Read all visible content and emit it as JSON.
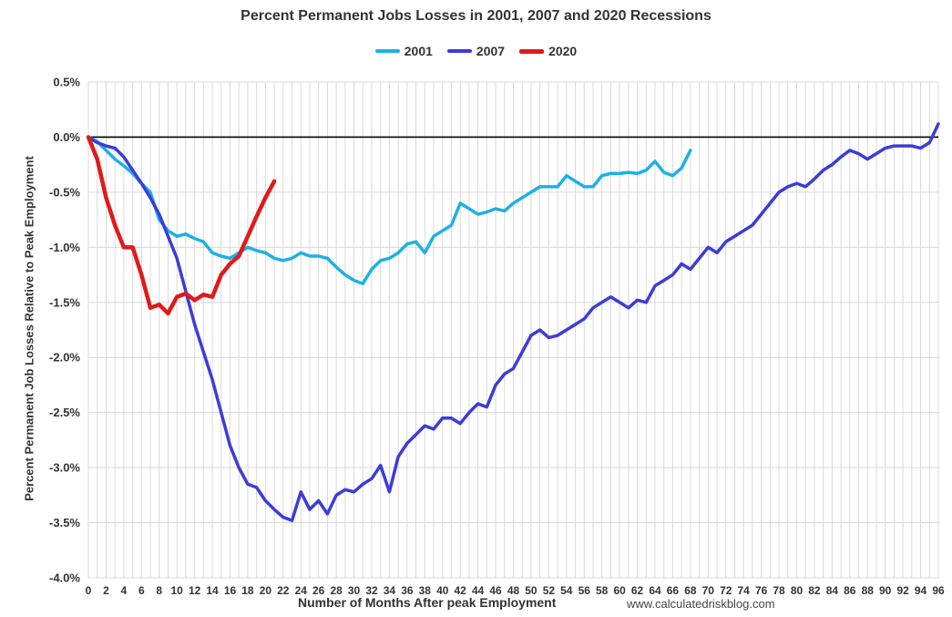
{
  "watermark": "www.calculatedriskblog.com",
  "chart_data": {
    "type": "line",
    "title": "Percent Permanent Jobs Losses in 2001, 2007 and 2020 Recessions",
    "xlabel": "Number of Months After peak Employment",
    "ylabel": "Percent Permanent Job Losses Relative to Peak Employment",
    "xlim": [
      0,
      96
    ],
    "ylim": [
      -4.0,
      0.5
    ],
    "x_tick_step": 2,
    "y_ticks": [
      0.5,
      0.0,
      -0.5,
      -1.0,
      -1.5,
      -2.0,
      -2.5,
      -3.0,
      -3.5,
      -4.0
    ],
    "grid": true,
    "legend_position": "top",
    "zero_line_color": "#000000",
    "grid_color": "#d9d9d9",
    "series": [
      {
        "name": "2001",
        "color": "#1EB0E6",
        "line_width": 3.5,
        "start_month": 0,
        "values": [
          0.0,
          -0.04,
          -0.12,
          -0.2,
          -0.26,
          -0.33,
          -0.42,
          -0.5,
          -0.75,
          -0.85,
          -0.9,
          -0.88,
          -0.92,
          -0.95,
          -1.05,
          -1.08,
          -1.1,
          -1.05,
          -1.0,
          -1.03,
          -1.05,
          -1.1,
          -1.12,
          -1.1,
          -1.05,
          -1.08,
          -1.08,
          -1.1,
          -1.18,
          -1.25,
          -1.3,
          -1.33,
          -1.2,
          -1.12,
          -1.1,
          -1.05,
          -0.97,
          -0.95,
          -1.05,
          -0.9,
          -0.85,
          -0.8,
          -0.6,
          -0.65,
          -0.7,
          -0.68,
          -0.65,
          -0.67,
          -0.6,
          -0.55,
          -0.5,
          -0.45,
          -0.45,
          -0.45,
          -0.35,
          -0.4,
          -0.45,
          -0.45,
          -0.35,
          -0.33,
          -0.33,
          -0.32,
          -0.33,
          -0.3,
          -0.22,
          -0.32,
          -0.35,
          -0.28,
          -0.12
        ]
      },
      {
        "name": "2007",
        "color": "#3C3CD9",
        "line_width": 3.5,
        "start_month": 0,
        "values": [
          0.0,
          -0.05,
          -0.08,
          -0.1,
          -0.18,
          -0.3,
          -0.42,
          -0.55,
          -0.7,
          -0.9,
          -1.1,
          -1.4,
          -1.7,
          -1.95,
          -2.2,
          -2.5,
          -2.8,
          -3.0,
          -3.15,
          -3.18,
          -3.3,
          -3.38,
          -3.45,
          -3.48,
          -3.22,
          -3.38,
          -3.3,
          -3.42,
          -3.25,
          -3.2,
          -3.22,
          -3.15,
          -3.1,
          -2.98,
          -3.22,
          -2.9,
          -2.78,
          -2.7,
          -2.62,
          -2.65,
          -2.55,
          -2.55,
          -2.6,
          -2.5,
          -2.42,
          -2.45,
          -2.25,
          -2.15,
          -2.1,
          -1.95,
          -1.8,
          -1.75,
          -1.82,
          -1.8,
          -1.75,
          -1.7,
          -1.65,
          -1.55,
          -1.5,
          -1.45,
          -1.5,
          -1.55,
          -1.48,
          -1.5,
          -1.35,
          -1.3,
          -1.25,
          -1.15,
          -1.2,
          -1.1,
          -1.0,
          -1.05,
          -0.95,
          -0.9,
          -0.85,
          -0.8,
          -0.7,
          -0.6,
          -0.5,
          -0.45,
          -0.42,
          -0.45,
          -0.38,
          -0.3,
          -0.25,
          -0.18,
          -0.12,
          -0.15,
          -0.2,
          -0.15,
          -0.1,
          -0.08,
          -0.08,
          -0.08,
          -0.1,
          -0.05,
          0.12
        ]
      },
      {
        "name": "2020",
        "color": "#E01A1A",
        "line_width": 4.5,
        "start_month": 0,
        "values": [
          0.0,
          -0.2,
          -0.55,
          -0.8,
          -1.0,
          -1.0,
          -1.25,
          -1.55,
          -1.52,
          -1.6,
          -1.45,
          -1.42,
          -1.48,
          -1.43,
          -1.45,
          -1.25,
          -1.15,
          -1.08,
          -0.9,
          -0.72,
          -0.55,
          -0.4
        ]
      }
    ]
  }
}
